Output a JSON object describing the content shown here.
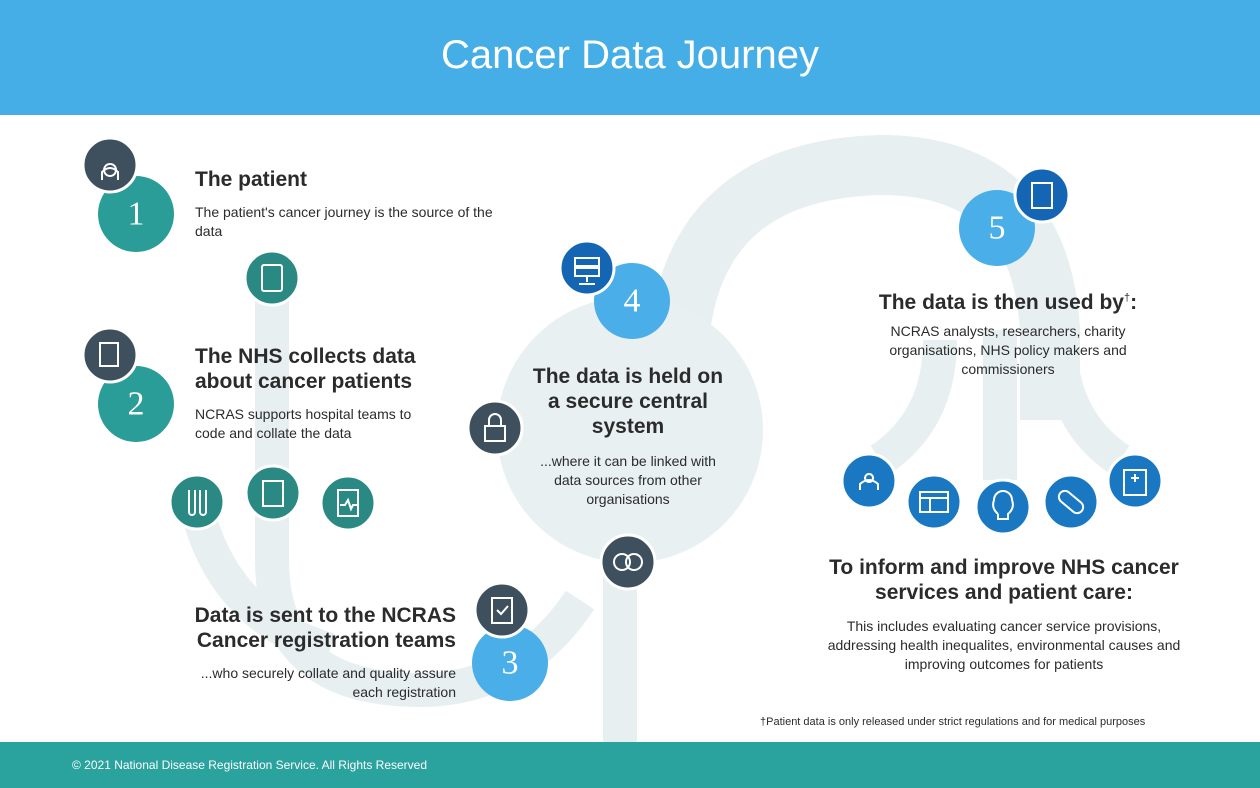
{
  "header": {
    "title": "Cancer Data Journey"
  },
  "steps": [
    {
      "number": "1",
      "heading": "The patient",
      "text": "The patient's cancer journey is the source of the data"
    },
    {
      "number": "2",
      "heading": "The NHS collects data about cancer patients",
      "text": "NCRAS supports hospital teams to code and collate the data"
    },
    {
      "number": "3",
      "heading": "Data is sent to the NCRAS Cancer registration teams",
      "text": "...who securely collate and quality assure each registration"
    },
    {
      "number": "4",
      "heading": "The data is held on a secure central system",
      "text": "...where it can be linked with data sources from other organisations"
    },
    {
      "number": "5",
      "heading": "The data is then used by",
      "dagger": "†",
      "colon": ":",
      "text": "NCRAS analysts, researchers, charity organisations, NHS policy makers and commissioners"
    }
  ],
  "outcome": {
    "heading": "To inform and improve NHS cancer services and patient care:",
    "text": "This includes evaluating cancer service provisions, addressing health inequalites, environmental causes and improving outcomes for patients"
  },
  "footnote": "†Patient data is only released under strict regulations and for medical purposes",
  "footer": {
    "text": "© 2021 National Disease Registration Service. All Rights Reserved"
  }
}
